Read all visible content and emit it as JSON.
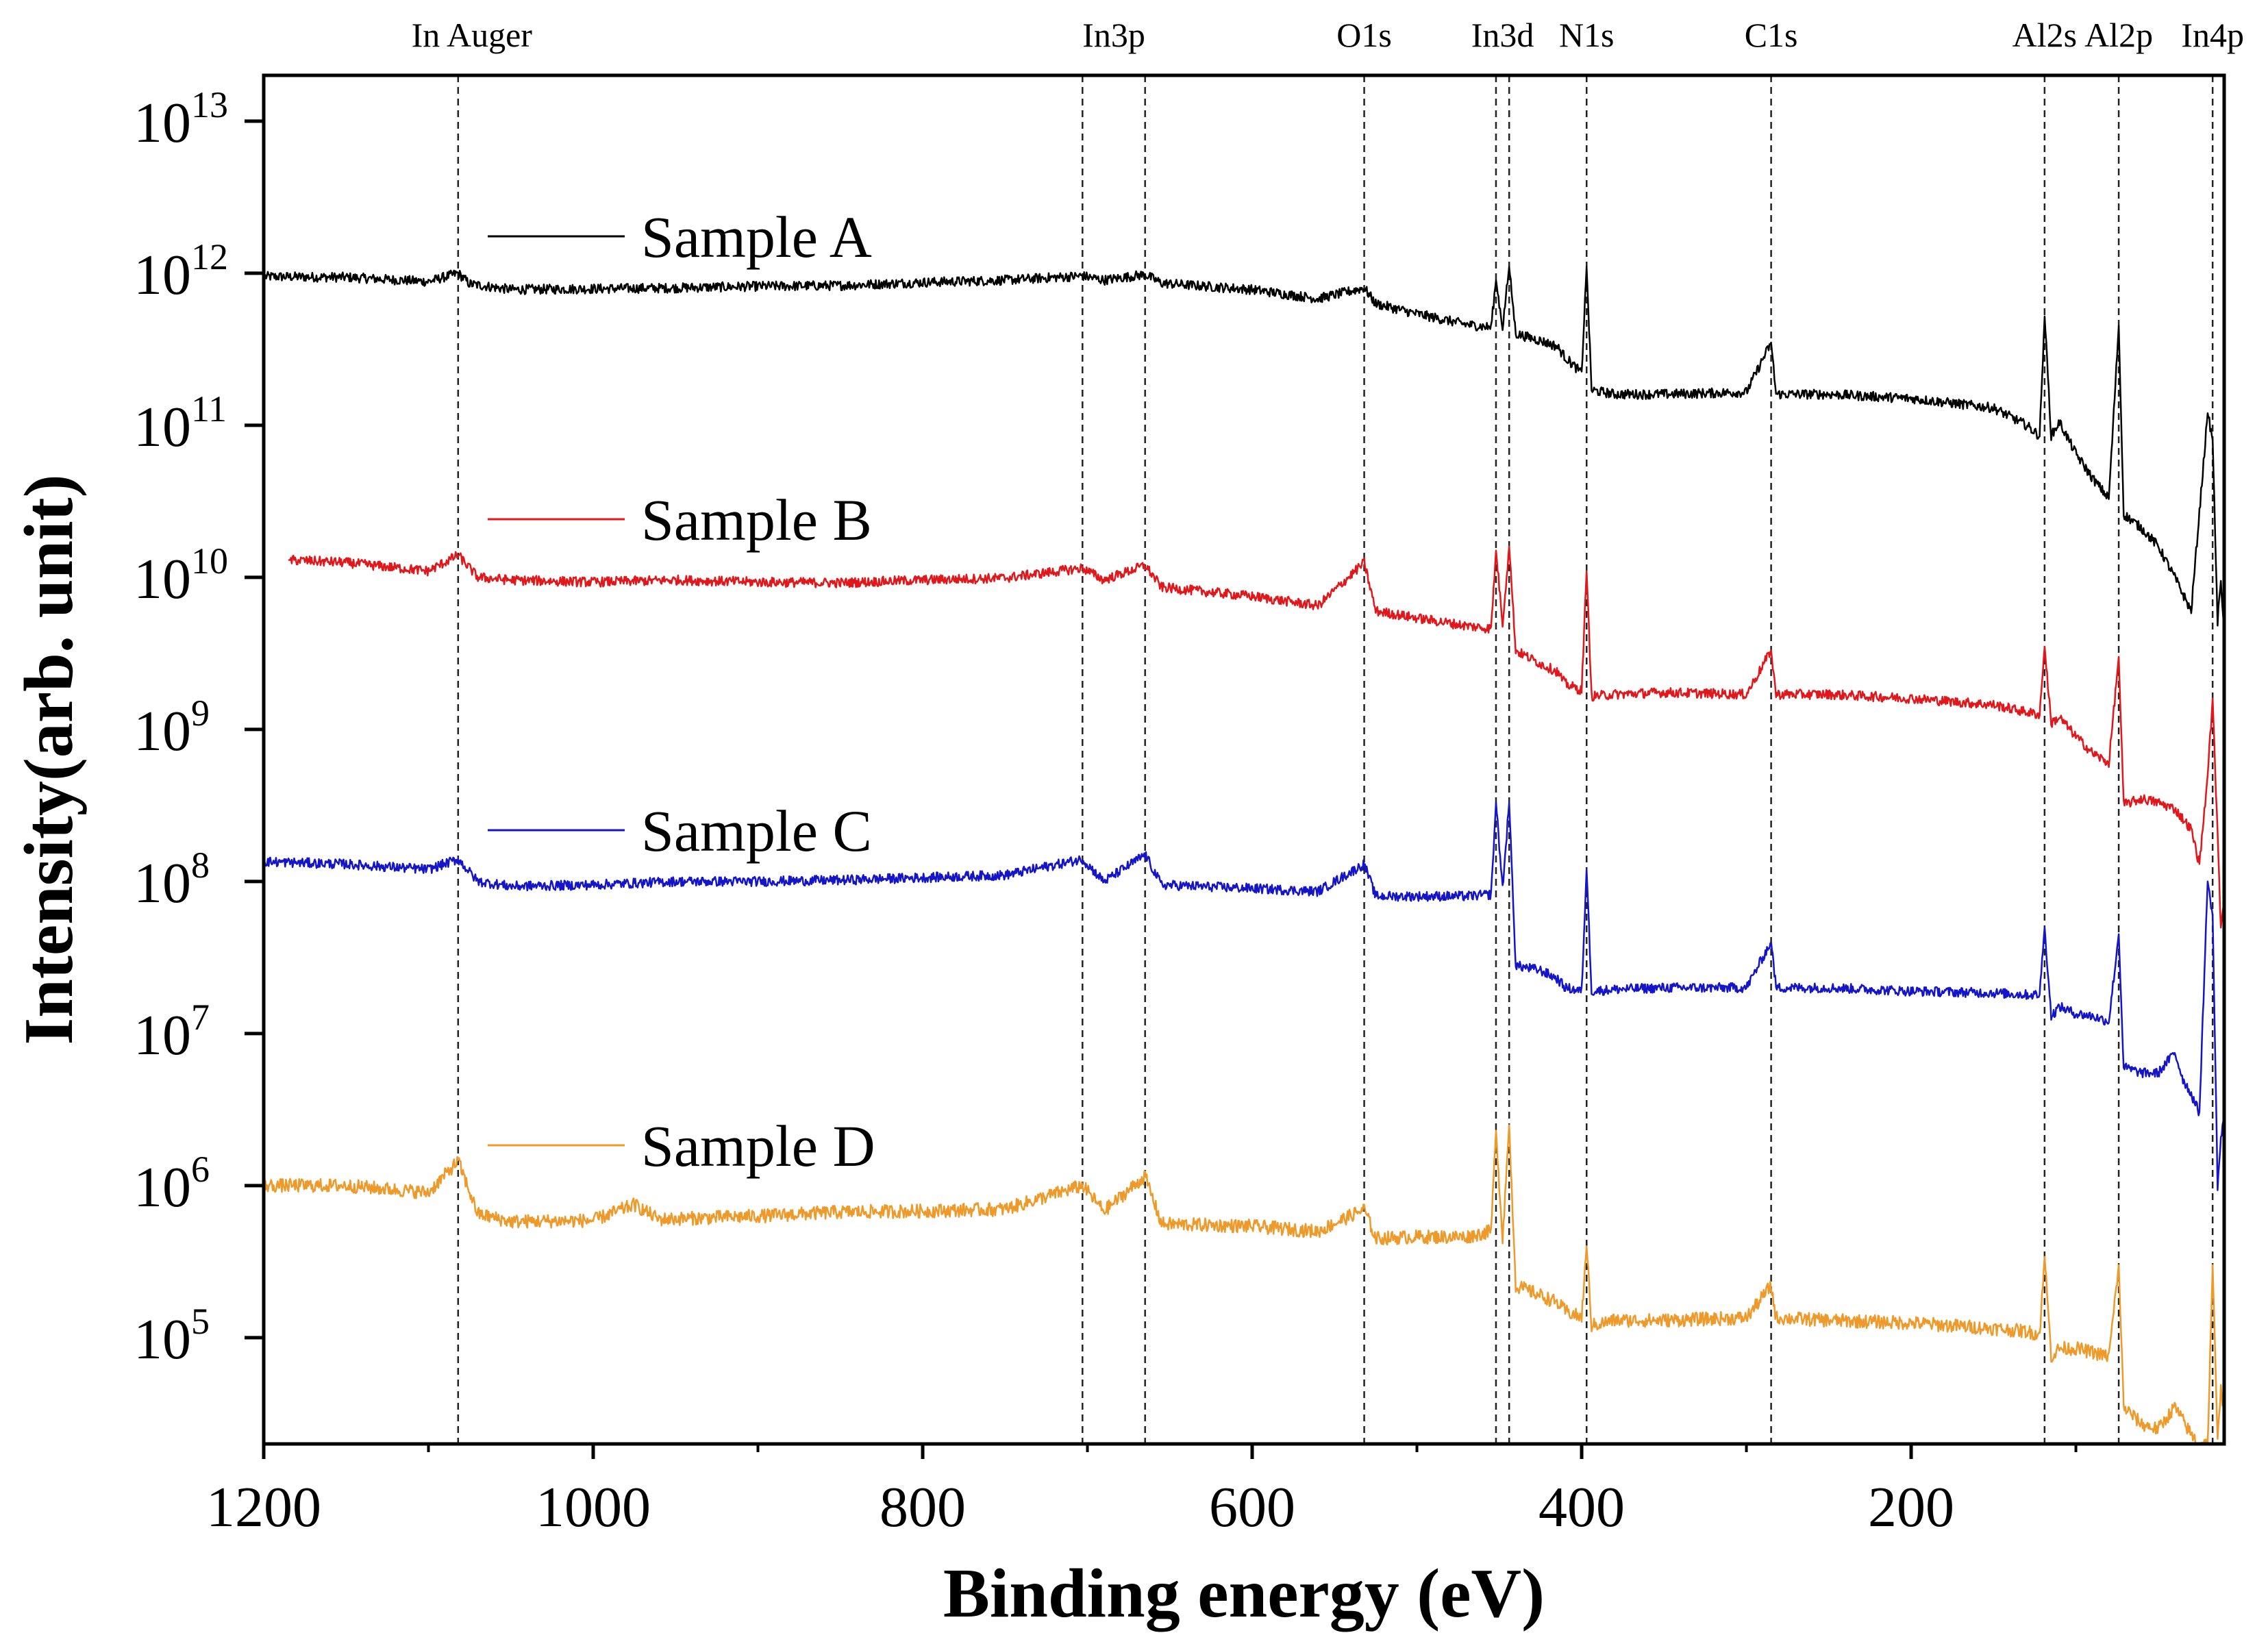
{
  "chart_data": {
    "type": "line",
    "xlabel": "Binding energy (eV)",
    "ylabel": "Intensity(arb. unit)",
    "x_range": [
      1200,
      10
    ],
    "x_reversed": true,
    "y_scale": "log",
    "y_range": [
      20000.0,
      20000000000000.0
    ],
    "x_ticks": [
      1200,
      1000,
      800,
      600,
      400,
      200
    ],
    "y_ticks": [
      {
        "base": "10",
        "exp": "5",
        "value": 100000.0
      },
      {
        "base": "10",
        "exp": "6",
        "value": 1000000.0
      },
      {
        "base": "10",
        "exp": "7",
        "value": 10000000.0
      },
      {
        "base": "10",
        "exp": "8",
        "value": 100000000.0
      },
      {
        "base": "10",
        "exp": "9",
        "value": 1000000000.0
      },
      {
        "base": "10",
        "exp": "10",
        "value": 10000000000.0
      },
      {
        "base": "10",
        "exp": "11",
        "value": 100000000000.0
      },
      {
        "base": "10",
        "exp": "12",
        "value": 1000000000000.0
      },
      {
        "base": "10",
        "exp": "13",
        "value": 10000000000000.0
      }
    ],
    "peak_markers": [
      {
        "label": "In Auger",
        "x": [
          1082
        ]
      },
      {
        "label": "In3p",
        "x": [
          703,
          665
        ]
      },
      {
        "label": "O1s",
        "x": [
          532
        ]
      },
      {
        "label": "In3d",
        "x": [
          452,
          444
        ]
      },
      {
        "label": "N1s",
        "x": [
          397
        ]
      },
      {
        "label": "C1s",
        "x": [
          285
        ]
      },
      {
        "label": "Al2s",
        "x": [
          119
        ]
      },
      {
        "label": "Al2p",
        "x": [
          74
        ]
      },
      {
        "label": "In4p",
        "x": [
          17
        ]
      }
    ],
    "series": [
      {
        "name": "Sample A",
        "color": "#000000",
        "x_start": 1200,
        "points": [
          [
            1200,
            950000000000.0
          ],
          [
            1150,
            940000000000.0
          ],
          [
            1100,
            880000000000.0
          ],
          [
            1082,
            1000000000000.0
          ],
          [
            1075,
            850000000000.0
          ],
          [
            1050,
            780000000000.0
          ],
          [
            1000,
            790000000000.0
          ],
          [
            950,
            800000000000.0
          ],
          [
            900,
            820000000000.0
          ],
          [
            850,
            830000000000.0
          ],
          [
            800,
            870000000000.0
          ],
          [
            750,
            900000000000.0
          ],
          [
            703,
            960000000000.0
          ],
          [
            690,
            900000000000.0
          ],
          [
            665,
            980000000000.0
          ],
          [
            655,
            860000000000.0
          ],
          [
            600,
            780000000000.0
          ],
          [
            560,
            680000000000.0
          ],
          [
            532,
            800000000000.0
          ],
          [
            525,
            630000000000.0
          ],
          [
            500,
            540000000000.0
          ],
          [
            470,
            460000000000.0
          ],
          [
            455,
            440000000000.0
          ],
          [
            452,
            900000000000.0
          ],
          [
            448,
            440000000000.0
          ],
          [
            444,
            1100000000000.0
          ],
          [
            440,
            400000000000.0
          ],
          [
            425,
            360000000000.0
          ],
          [
            415,
            330000000000.0
          ],
          [
            410,
            280000000000.0
          ],
          [
            400,
            220000000000.0
          ],
          [
            397,
            1100000000000.0
          ],
          [
            394,
            170000000000.0
          ],
          [
            380,
            160000000000.0
          ],
          [
            350,
            160000000000.0
          ],
          [
            300,
            165000000000.0
          ],
          [
            285,
            350000000000.0
          ],
          [
            282,
            160000000000.0
          ],
          [
            250,
            160000000000.0
          ],
          [
            200,
            150000000000.0
          ],
          [
            150,
            130000000000.0
          ],
          [
            130,
            100000000000.0
          ],
          [
            122,
            85000000000.0
          ],
          [
            119,
            520000000000.0
          ],
          [
            115,
            85000000000.0
          ],
          [
            110,
            105000000000.0
          ],
          [
            100,
            65000000000.0
          ],
          [
            90,
            45000000000.0
          ],
          [
            80,
            33000000000.0
          ],
          [
            74,
            450000000000.0
          ],
          [
            71,
            26000000000.0
          ],
          [
            60,
            21000000000.0
          ],
          [
            50,
            16000000000.0
          ],
          [
            40,
            10000000000.0
          ],
          [
            30,
            6000000000.0
          ],
          [
            20,
            120000000000.0
          ],
          [
            17,
            80000000000.0
          ],
          [
            14,
            5000000000.0
          ],
          [
            12,
            10000000000.0
          ],
          [
            10,
            4000000000.0
          ]
        ]
      },
      {
        "name": "Sample B",
        "color": "#e0171b",
        "x_start": 1185,
        "points": [
          [
            1185,
            13000000000.0
          ],
          [
            1150,
            12500000000.0
          ],
          [
            1100,
            11000000000.0
          ],
          [
            1082,
            14000000000.0
          ],
          [
            1070,
            10000000000.0
          ],
          [
            1050,
            9600000000.0
          ],
          [
            1000,
            9300000000.0
          ],
          [
            950,
            9600000000.0
          ],
          [
            900,
            9300000000.0
          ],
          [
            850,
            9200000000.0
          ],
          [
            800,
            9600000000.0
          ],
          [
            750,
            9900000000.0
          ],
          [
            703,
            11500000000.0
          ],
          [
            690,
            9600000000.0
          ],
          [
            665,
            12000000000.0
          ],
          [
            655,
            8600000000.0
          ],
          [
            600,
            7500000000.0
          ],
          [
            560,
            6500000000.0
          ],
          [
            532,
            12500000000.0
          ],
          [
            525,
            6000000000.0
          ],
          [
            500,
            5400000000.0
          ],
          [
            470,
            4800000000.0
          ],
          [
            455,
            4600000000.0
          ],
          [
            452,
            15000000000.0
          ],
          [
            448,
            5000000000.0
          ],
          [
            444,
            16000000000.0
          ],
          [
            440,
            3300000000.0
          ],
          [
            425,
            2700000000.0
          ],
          [
            415,
            2400000000.0
          ],
          [
            410,
            2000000000.0
          ],
          [
            400,
            1800000000.0
          ],
          [
            397,
            11000000000.0
          ],
          [
            394,
            1650000000.0
          ],
          [
            380,
            1700000000.0
          ],
          [
            350,
            1750000000.0
          ],
          [
            300,
            1700000000.0
          ],
          [
            285,
            3300000000.0
          ],
          [
            282,
            1700000000.0
          ],
          [
            250,
            1700000000.0
          ],
          [
            200,
            1600000000.0
          ],
          [
            150,
            1450000000.0
          ],
          [
            130,
            1300000000.0
          ],
          [
            122,
            1250000000.0
          ],
          [
            119,
            3500000000.0
          ],
          [
            115,
            1100000000.0
          ],
          [
            110,
            1200000000.0
          ],
          [
            100,
            900000000.0
          ],
          [
            90,
            700000000.0
          ],
          [
            80,
            600000000.0
          ],
          [
            74,
            3000000000.0
          ],
          [
            71,
            320000000.0
          ],
          [
            60,
            350000000.0
          ],
          [
            50,
            330000000.0
          ],
          [
            40,
            300000000.0
          ],
          [
            30,
            220000000.0
          ],
          [
            25,
            130000000.0
          ],
          [
            20,
            500000000.0
          ],
          [
            17,
            1600000000.0
          ],
          [
            14,
            200000000.0
          ],
          [
            12,
            50000000.0
          ],
          [
            10,
            80000000.0
          ]
        ]
      },
      {
        "name": "Sample C",
        "color": "#1414c8",
        "x_start": 1200,
        "points": [
          [
            1200,
            135000000.0
          ],
          [
            1150,
            130000000.0
          ],
          [
            1100,
            120000000.0
          ],
          [
            1082,
            140000000.0
          ],
          [
            1070,
            100000000.0
          ],
          [
            1050,
            93000000.0
          ],
          [
            1000,
            95000000.0
          ],
          [
            950,
            100000000.0
          ],
          [
            900,
            100000000.0
          ],
          [
            850,
            102000000.0
          ],
          [
            800,
            106000000.0
          ],
          [
            750,
            110000000.0
          ],
          [
            703,
            140000000.0
          ],
          [
            690,
            100000000.0
          ],
          [
            665,
            150000000.0
          ],
          [
            655,
            95000000.0
          ],
          [
            600,
            90000000.0
          ],
          [
            560,
            86000000.0
          ],
          [
            532,
            130000000.0
          ],
          [
            525,
            80000000.0
          ],
          [
            500,
            80000000.0
          ],
          [
            470,
            80000000.0
          ],
          [
            455,
            82000000.0
          ],
          [
            452,
            330000000.0
          ],
          [
            448,
            90000000.0
          ],
          [
            444,
            330000000.0
          ],
          [
            440,
            28000000.0
          ],
          [
            425,
            26000000.0
          ],
          [
            415,
            23000000.0
          ],
          [
            410,
            20000000.0
          ],
          [
            400,
            19000000.0
          ],
          [
            397,
            120000000.0
          ],
          [
            394,
            19000000.0
          ],
          [
            380,
            19500000.0
          ],
          [
            350,
            20000000.0
          ],
          [
            300,
            20000000.0
          ],
          [
            285,
            40000000.0
          ],
          [
            282,
            20000000.0
          ],
          [
            250,
            20000000.0
          ],
          [
            200,
            19000000.0
          ],
          [
            150,
            18500000.0
          ],
          [
            130,
            18000000.0
          ],
          [
            122,
            18000000.0
          ],
          [
            119,
            50000000.0
          ],
          [
            115,
            13000000.0
          ],
          [
            110,
            15000000.0
          ],
          [
            100,
            13500000.0
          ],
          [
            90,
            13000000.0
          ],
          [
            80,
            12000000.0
          ],
          [
            74,
            45000000.0
          ],
          [
            71,
            6000000.0
          ],
          [
            60,
            5500000.0
          ],
          [
            50,
            5500000.0
          ],
          [
            40,
            7500000.0
          ],
          [
            35,
            5000000.0
          ],
          [
            30,
            4000000.0
          ],
          [
            25,
            3000000.0
          ],
          [
            20,
            100000000.0
          ],
          [
            17,
            60000000.0
          ],
          [
            14,
            1000000.0
          ],
          [
            12,
            2000000.0
          ],
          [
            10,
            3000000.0
          ]
        ]
      },
      {
        "name": "Sample D",
        "color": "#ed9a2b",
        "x_start": 1200,
        "points": [
          [
            1200,
            1000000.0
          ],
          [
            1150,
            1000000.0
          ],
          [
            1100,
            900000.0
          ],
          [
            1082,
            1450000.0
          ],
          [
            1070,
            650000.0
          ],
          [
            1050,
            580000.0
          ],
          [
            1000,
            590000.0
          ],
          [
            975,
            750000.0
          ],
          [
            960,
            600000.0
          ],
          [
            900,
            630000.0
          ],
          [
            850,
            670000.0
          ],
          [
            800,
            680000.0
          ],
          [
            750,
            700000.0
          ],
          [
            703,
            1000000.0
          ],
          [
            690,
            680000.0
          ],
          [
            665,
            1150000.0
          ],
          [
            655,
            560000.0
          ],
          [
            600,
            540000.0
          ],
          [
            560,
            500000.0
          ],
          [
            532,
            700000.0
          ],
          [
            525,
            450000.0
          ],
          [
            500,
            460000.0
          ],
          [
            470,
            460000.0
          ],
          [
            455,
            500000.0
          ],
          [
            452,
            2300000.0
          ],
          [
            448,
            450000.0
          ],
          [
            444,
            2500000.0
          ],
          [
            440,
            220000.0
          ],
          [
            425,
            190000.0
          ],
          [
            415,
            170000.0
          ],
          [
            410,
            150000.0
          ],
          [
            400,
            135000.0
          ],
          [
            397,
            400000.0
          ],
          [
            394,
            120000.0
          ],
          [
            380,
            130000.0
          ],
          [
            350,
            130000.0
          ],
          [
            300,
            135000.0
          ],
          [
            285,
            220000.0
          ],
          [
            282,
            135000.0
          ],
          [
            250,
            130000.0
          ],
          [
            200,
            125000.0
          ],
          [
            150,
            115000.0
          ],
          [
            130,
            110000.0
          ],
          [
            122,
            105000.0
          ],
          [
            119,
            340000.0
          ],
          [
            115,
            75000.0
          ],
          [
            110,
            85000.0
          ],
          [
            100,
            85000.0
          ],
          [
            90,
            80000.0
          ],
          [
            80,
            75000.0
          ],
          [
            74,
            300000.0
          ],
          [
            71,
            35000.0
          ],
          [
            60,
            27000.0
          ],
          [
            50,
            25000.0
          ],
          [
            40,
            35000.0
          ],
          [
            30,
            23000.0
          ],
          [
            25,
            20000.0
          ],
          [
            20,
            20000.0
          ],
          [
            17,
            300000.0
          ],
          [
            14,
            20000.0
          ],
          [
            12,
            50000.0
          ],
          [
            10,
            30000.0
          ]
        ]
      }
    ]
  }
}
